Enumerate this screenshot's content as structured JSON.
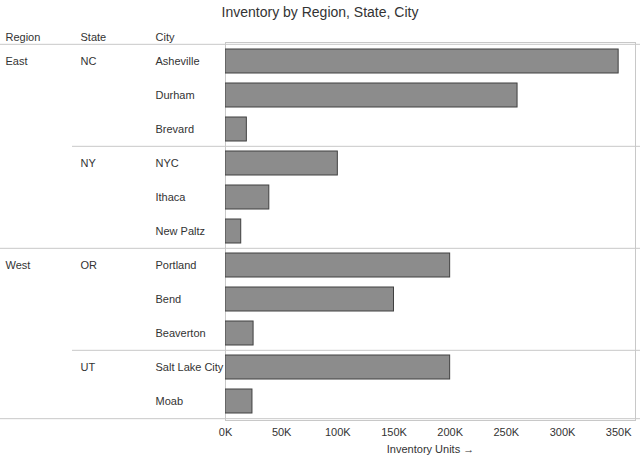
{
  "chart_data": {
    "type": "bar",
    "orientation": "horizontal",
    "title": "Inventory by Region, State, City",
    "column_headers": [
      "Region",
      "State",
      "City"
    ],
    "regions": [
      "East",
      "East",
      "East",
      "East",
      "East",
      "East",
      "West",
      "West",
      "West",
      "West",
      "West"
    ],
    "states": [
      "NC",
      "NC",
      "NC",
      "NY",
      "NY",
      "NY",
      "OR",
      "OR",
      "OR",
      "UT",
      "UT"
    ],
    "categories": [
      "Asheville",
      "Durham",
      "Brevard",
      "NYC",
      "Ithaca",
      "New Paltz",
      "Portland",
      "Bend",
      "Beaverton",
      "Salt Lake City",
      "Moab"
    ],
    "values": [
      350000,
      260000,
      19000,
      100000,
      39000,
      14000,
      200000,
      150000,
      25000,
      200000,
      24000
    ],
    "color": "#8c8c8c",
    "xlabel": "Inventory Units",
    "xlim": [
      0,
      365000
    ],
    "xticks": [
      {
        "value": 0,
        "label": "0K"
      },
      {
        "value": 50000,
        "label": "50K"
      },
      {
        "value": 100000,
        "label": "100K"
      },
      {
        "value": 150000,
        "label": "150K"
      },
      {
        "value": 200000,
        "label": "200K"
      },
      {
        "value": 250000,
        "label": "250K"
      },
      {
        "value": 300000,
        "label": "300K"
      },
      {
        "value": 350000,
        "label": "350K"
      }
    ],
    "grid": false
  }
}
